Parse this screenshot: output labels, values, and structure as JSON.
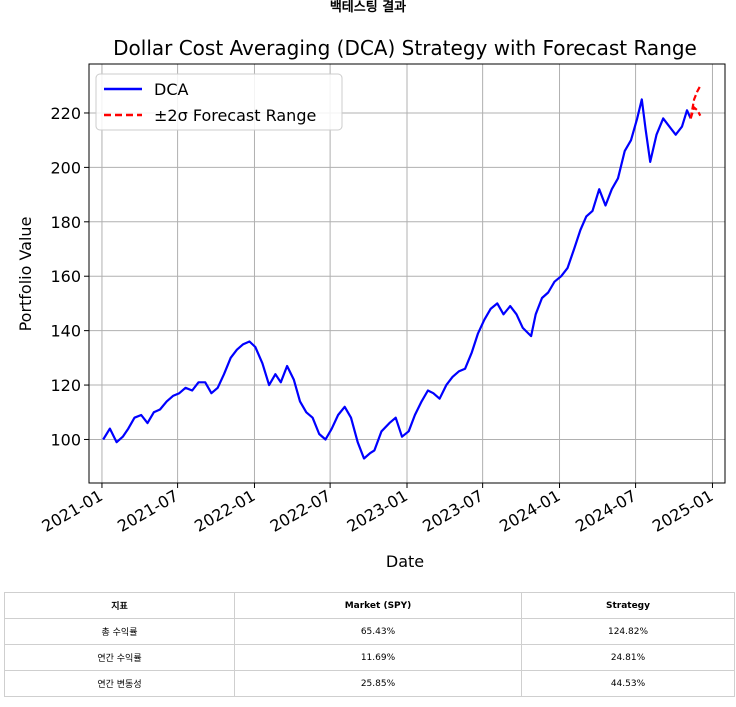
{
  "page": {
    "heading": "백테스팅 결과"
  },
  "colors": {
    "dca_line": "#0000ff",
    "forecast_line": "#ff0000",
    "grid": "#b0b0b0"
  },
  "chart_data": {
    "type": "line",
    "title": "Dollar Cost Averaging (DCA) Strategy with Forecast Range",
    "xlabel": "Date",
    "ylabel": "Portfolio Value",
    "xlim": [
      "2020-12-01",
      "2025-01-31"
    ],
    "ylim": [
      84,
      238
    ],
    "grid": true,
    "legend_position": "top-left",
    "x_ticks": [
      "2021-01",
      "2021-07",
      "2022-01",
      "2022-07",
      "2023-01",
      "2023-07",
      "2024-01",
      "2024-07",
      "2025-01"
    ],
    "y_ticks": [
      100,
      120,
      140,
      160,
      180,
      200,
      220
    ],
    "series": [
      {
        "name": "DCA",
        "style": "solid",
        "color": "#0000ff",
        "x": [
          "2021-01-04",
          "2021-01-20",
          "2021-02-05",
          "2021-02-20",
          "2021-03-05",
          "2021-03-20",
          "2021-04-05",
          "2021-04-20",
          "2021-05-05",
          "2021-05-20",
          "2021-06-05",
          "2021-06-20",
          "2021-07-05",
          "2021-07-20",
          "2021-08-05",
          "2021-08-20",
          "2021-09-05",
          "2021-09-20",
          "2021-10-05",
          "2021-10-20",
          "2021-11-05",
          "2021-11-20",
          "2021-12-05",
          "2021-12-20",
          "2022-01-03",
          "2022-01-20",
          "2022-02-05",
          "2022-02-20",
          "2022-03-05",
          "2022-03-20",
          "2022-04-05",
          "2022-04-20",
          "2022-05-05",
          "2022-05-20",
          "2022-06-05",
          "2022-06-20",
          "2022-07-05",
          "2022-07-20",
          "2022-08-05",
          "2022-08-20",
          "2022-09-05",
          "2022-09-20",
          "2022-10-05",
          "2022-10-15",
          "2022-11-01",
          "2022-11-20",
          "2022-12-05",
          "2022-12-20",
          "2023-01-05",
          "2023-01-20",
          "2023-02-05",
          "2023-02-20",
          "2023-03-05",
          "2023-03-20",
          "2023-04-05",
          "2023-04-20",
          "2023-05-05",
          "2023-05-20",
          "2023-06-05",
          "2023-06-20",
          "2023-07-05",
          "2023-07-20",
          "2023-08-05",
          "2023-08-20",
          "2023-09-05",
          "2023-09-20",
          "2023-10-05",
          "2023-10-25",
          "2023-11-05",
          "2023-11-20",
          "2023-12-05",
          "2023-12-20",
          "2024-01-05",
          "2024-01-20",
          "2024-02-05",
          "2024-02-20",
          "2024-03-05",
          "2024-03-20",
          "2024-04-05",
          "2024-04-20",
          "2024-05-05",
          "2024-05-20",
          "2024-06-05",
          "2024-06-20",
          "2024-07-05",
          "2024-07-16",
          "2024-07-25",
          "2024-08-05",
          "2024-08-20",
          "2024-09-05",
          "2024-09-20",
          "2024-10-05",
          "2024-10-20",
          "2024-11-01",
          "2024-11-10"
        ],
        "y": [
          100,
          104,
          99,
          101,
          104,
          108,
          109,
          106,
          110,
          111,
          114,
          116,
          117,
          119,
          118,
          121,
          121,
          117,
          119,
          124,
          130,
          133,
          135,
          136,
          134,
          128,
          120,
          124,
          121,
          127,
          122,
          114,
          110,
          108,
          102,
          100,
          104,
          109,
          112,
          108,
          99,
          93,
          95,
          96,
          103,
          106,
          108,
          101,
          103,
          109,
          114,
          118,
          117,
          115,
          120,
          123,
          125,
          126,
          132,
          139,
          144,
          148,
          150,
          146,
          149,
          146,
          141,
          138,
          146,
          152,
          154,
          158,
          160,
          163,
          170,
          177,
          182,
          184,
          192,
          186,
          192,
          196,
          206,
          210,
          218,
          225,
          214,
          202,
          212,
          218,
          215,
          212,
          215,
          221,
          218
        ]
      },
      {
        "name": "±2σ Forecast Range",
        "style": "dashed",
        "color": "#ff0000",
        "x": [
          "2024-11-10",
          "2024-11-18",
          "2024-11-26",
          "2024-12-03"
        ],
        "y_upper": [
          218,
          225,
          228,
          230
        ],
        "y_lower": [
          218,
          222,
          221,
          219
        ]
      }
    ]
  },
  "table": {
    "headers": [
      "지표",
      "Market (SPY)",
      "Strategy"
    ],
    "rows": [
      [
        "총 수익률",
        "65.43%",
        "124.82%"
      ],
      [
        "연간 수익률",
        "11.69%",
        "24.81%"
      ],
      [
        "연간 변동성",
        "25.85%",
        "44.53%"
      ]
    ]
  }
}
